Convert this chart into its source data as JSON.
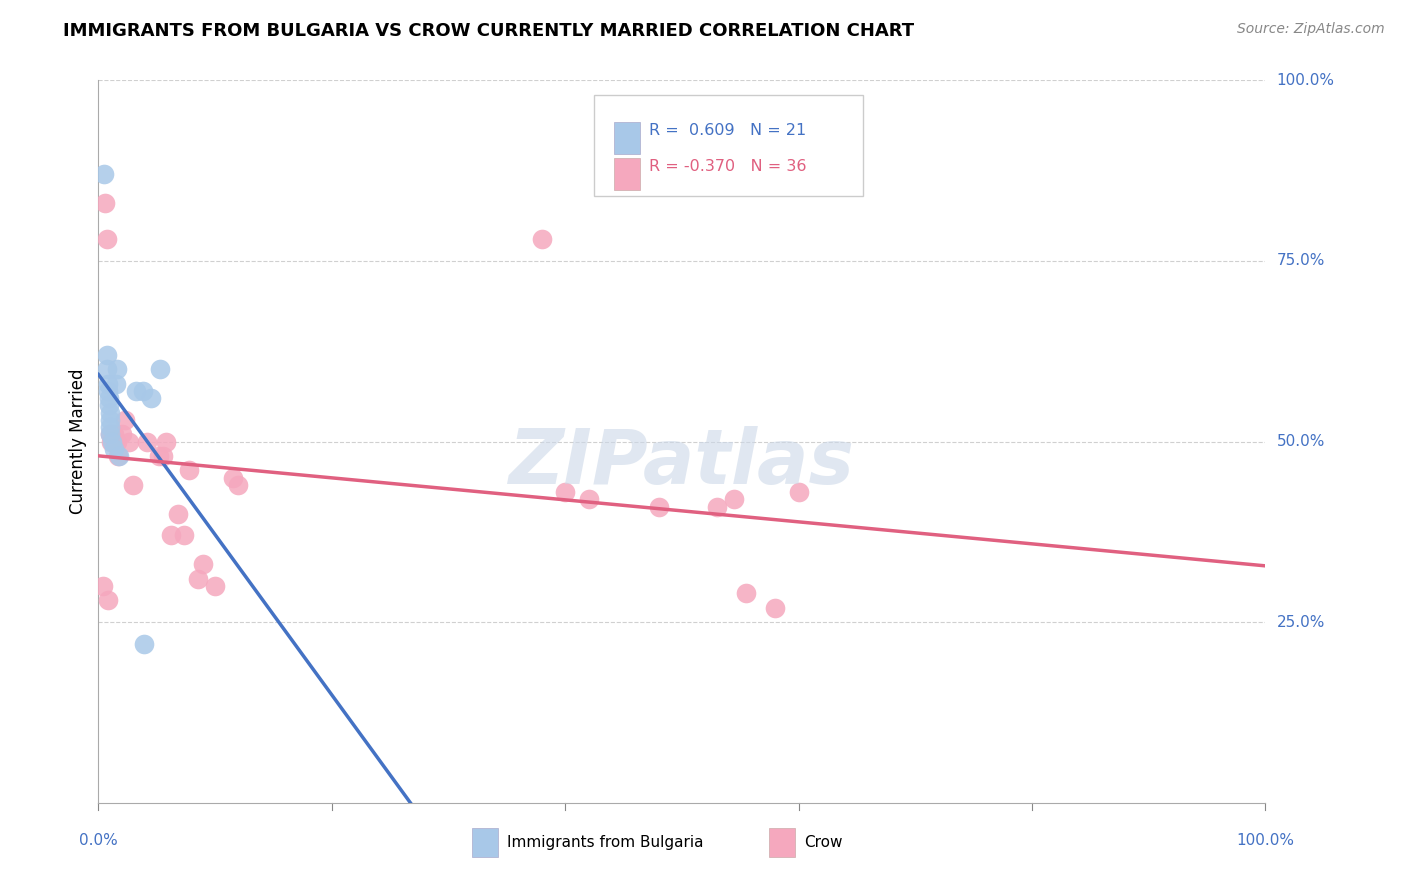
{
  "title": "IMMIGRANTS FROM BULGARIA VS CROW CURRENTLY MARRIED CORRELATION CHART",
  "ylabel_label": "Currently Married",
  "source_text": "Source: ZipAtlas.com",
  "background_color": "#ffffff",
  "grid_color": "#cccccc",
  "watermark_text": "ZIPatlas",
  "bulgaria_color": "#a8c8e8",
  "crow_color": "#f5a8be",
  "bulgaria_line_color": "#4472c4",
  "crow_line_color": "#e06080",
  "legend_R_bulgaria": " 0.609",
  "legend_N_bulgaria": "21",
  "legend_R_crow": "-0.370",
  "legend_N_crow": "36",
  "bulgaria_scatter_x": [
    0.005,
    0.007,
    0.007,
    0.008,
    0.008,
    0.009,
    0.009,
    0.01,
    0.01,
    0.01,
    0.01,
    0.012,
    0.013,
    0.015,
    0.016,
    0.018,
    0.032,
    0.038,
    0.039,
    0.045,
    0.053
  ],
  "bulgaria_scatter_y": [
    0.87,
    0.62,
    0.6,
    0.58,
    0.57,
    0.56,
    0.55,
    0.54,
    0.53,
    0.52,
    0.51,
    0.5,
    0.49,
    0.58,
    0.6,
    0.48,
    0.57,
    0.57,
    0.22,
    0.56,
    0.6
  ],
  "crow_scatter_x": [
    0.004,
    0.006,
    0.007,
    0.008,
    0.01,
    0.011,
    0.013,
    0.014,
    0.016,
    0.017,
    0.02,
    0.023,
    0.026,
    0.03,
    0.042,
    0.052,
    0.055,
    0.058,
    0.062,
    0.068,
    0.073,
    0.078,
    0.085,
    0.09,
    0.1,
    0.115,
    0.12,
    0.38,
    0.4,
    0.42,
    0.48,
    0.53,
    0.545,
    0.555,
    0.58,
    0.6
  ],
  "crow_scatter_y": [
    0.3,
    0.83,
    0.78,
    0.28,
    0.51,
    0.5,
    0.51,
    0.5,
    0.5,
    0.48,
    0.51,
    0.53,
    0.5,
    0.44,
    0.5,
    0.48,
    0.48,
    0.5,
    0.37,
    0.4,
    0.37,
    0.46,
    0.31,
    0.33,
    0.3,
    0.45,
    0.44,
    0.78,
    0.43,
    0.42,
    0.41,
    0.41,
    0.42,
    0.29,
    0.27,
    0.43
  ],
  "xlim": [
    0.0,
    1.0
  ],
  "ylim": [
    0.0,
    1.0
  ]
}
